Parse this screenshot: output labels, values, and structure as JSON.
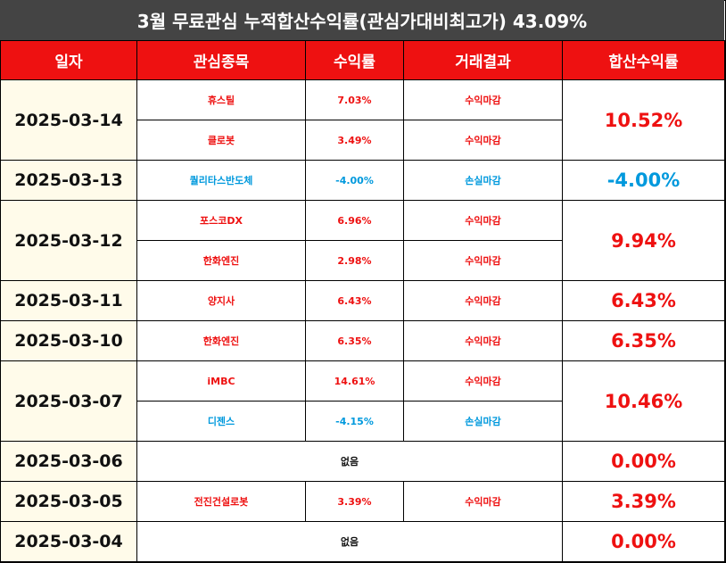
{
  "title": "3월 무료관심 누적합산수익률(관심가대비최고가) 43.09%",
  "headers": {
    "date": "일자",
    "stock": "관심종목",
    "rate": "수익률",
    "result": "거래결과",
    "total": "합산수익률"
  },
  "colors": {
    "header_bg": "#ee1111",
    "title_bg": "#444444",
    "profit": "#ee1111",
    "loss": "#0099dd",
    "date_bg": "#fffbea"
  },
  "rows": [
    {
      "date": "2025-03-14",
      "total": "10.52%",
      "total_tone": "red",
      "items": [
        {
          "stock": "휴스틸",
          "rate": "7.03%",
          "result": "수익마감",
          "tone": "red"
        },
        {
          "stock": "클로봇",
          "rate": "3.49%",
          "result": "수익마감",
          "tone": "red"
        }
      ]
    },
    {
      "date": "2025-03-13",
      "total": "-4.00%",
      "total_tone": "blue",
      "items": [
        {
          "stock": "퀄리타스반도체",
          "rate": "-4.00%",
          "result": "손실마감",
          "tone": "blue"
        }
      ]
    },
    {
      "date": "2025-03-12",
      "total": "9.94%",
      "total_tone": "red",
      "items": [
        {
          "stock": "포스코DX",
          "rate": "6.96%",
          "result": "수익마감",
          "tone": "red"
        },
        {
          "stock": "한화엔진",
          "rate": "2.98%",
          "result": "수익마감",
          "tone": "red"
        }
      ]
    },
    {
      "date": "2025-03-11",
      "total": "6.43%",
      "total_tone": "red",
      "items": [
        {
          "stock": "양지사",
          "rate": "6.43%",
          "result": "수익마감",
          "tone": "red"
        }
      ]
    },
    {
      "date": "2025-03-10",
      "total": "6.35%",
      "total_tone": "red",
      "items": [
        {
          "stock": "한화엔진",
          "rate": "6.35%",
          "result": "수익마감",
          "tone": "red"
        }
      ]
    },
    {
      "date": "2025-03-07",
      "total": "10.46%",
      "total_tone": "red",
      "items": [
        {
          "stock": "iMBC",
          "rate": "14.61%",
          "result": "수익마감",
          "tone": "red"
        },
        {
          "stock": "디젠스",
          "rate": "-4.15%",
          "result": "손실마감",
          "tone": "blue"
        }
      ]
    },
    {
      "date": "2025-03-06",
      "total": "0.00%",
      "total_tone": "red",
      "none": "없음",
      "items": []
    },
    {
      "date": "2025-03-05",
      "total": "3.39%",
      "total_tone": "red",
      "items": [
        {
          "stock": "전진건설로봇",
          "rate": "3.39%",
          "result": "수익마감",
          "tone": "red"
        }
      ]
    },
    {
      "date": "2025-03-04",
      "total": "0.00%",
      "total_tone": "red",
      "none": "없음",
      "items": []
    }
  ]
}
